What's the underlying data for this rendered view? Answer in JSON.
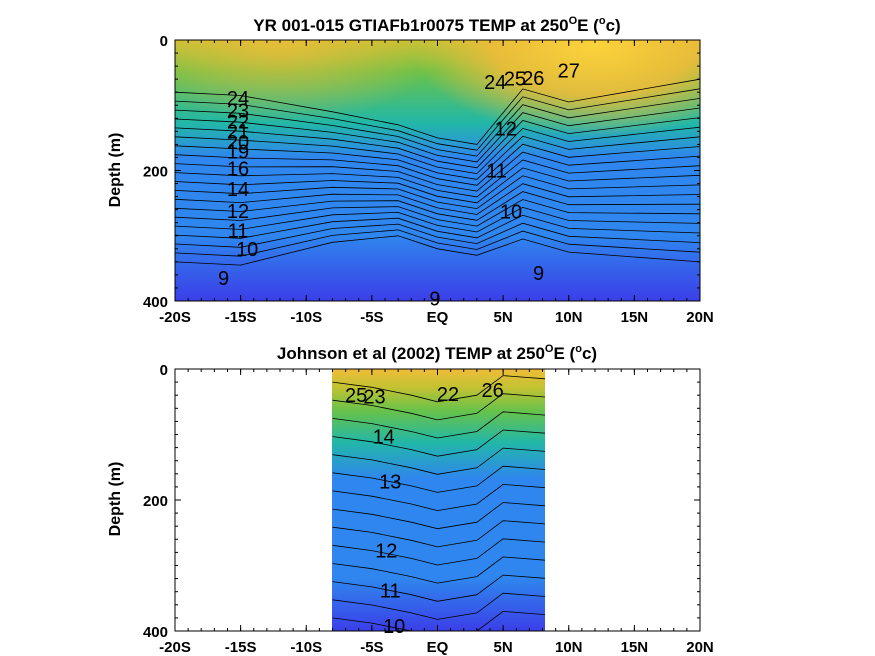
{
  "colors": {
    "deep": "#3b3ee8",
    "blue": "#2f86ee",
    "teal": "#22b7a8",
    "green": "#67c24a",
    "yellow_green": "#c3c232",
    "orange": "#f0bc39",
    "warm": "#fbd33a"
  },
  "chart_data": [
    {
      "type": "heatmap",
      "title": "YR 001-015 GTIAFb1r0075 TEMP at 250°E (°c)",
      "title_parts": {
        "pre": "YR 001-015 GTIAFb1r0075 TEMP at 250",
        "degree_sup": "O",
        "mid": "E (",
        "unit_sup": "o",
        "post": "c)"
      },
      "xlabel": "",
      "ylabel": "Depth (m)",
      "xlim": [
        -20,
        20
      ],
      "ylim": [
        400,
        0
      ],
      "x_ticks": [
        -20,
        -15,
        -10,
        -5,
        0,
        5,
        10,
        15,
        20
      ],
      "x_tick_labels": [
        "-20S",
        "-15S",
        "-10S",
        "-5S",
        "EQ",
        "5N",
        "10N",
        "15N",
        "20N"
      ],
      "y_ticks": [
        0,
        200,
        400
      ],
      "y_tick_labels": [
        "0",
        "200",
        "400"
      ],
      "data_extent_lat": [
        -20,
        20
      ],
      "contour_labels": [
        {
          "text": "24",
          "lat": -15.2,
          "depth": 89
        },
        {
          "text": "23",
          "lat": -15.2,
          "depth": 108
        },
        {
          "text": "22",
          "lat": -15.2,
          "depth": 125
        },
        {
          "text": "21",
          "lat": -15.2,
          "depth": 140
        },
        {
          "text": "20",
          "lat": -15.2,
          "depth": 156
        },
        {
          "text": "19",
          "lat": -15.2,
          "depth": 171
        },
        {
          "text": "16",
          "lat": -15.2,
          "depth": 197
        },
        {
          "text": "14",
          "lat": -15.2,
          "depth": 228
        },
        {
          "text": "12",
          "lat": -15.2,
          "depth": 262
        },
        {
          "text": "11",
          "lat": -15.2,
          "depth": 292
        },
        {
          "text": "10",
          "lat": -14.5,
          "depth": 320
        },
        {
          "text": "9",
          "lat": -16.3,
          "depth": 365
        },
        {
          "text": "9",
          "lat": 7.7,
          "depth": 357
        },
        {
          "text": "9",
          "lat": -0.2,
          "depth": 396
        },
        {
          "text": "10",
          "lat": 5.6,
          "depth": 263
        },
        {
          "text": "11",
          "lat": 4.5,
          "depth": 200
        },
        {
          "text": "12",
          "lat": 5.2,
          "depth": 136
        },
        {
          "text": "26",
          "lat": 7.3,
          "depth": 58
        },
        {
          "text": "27",
          "lat": 10.0,
          "depth": 47
        },
        {
          "text": "25",
          "lat": 5.9,
          "depth": 59
        },
        {
          "text": "24",
          "lat": 4.4,
          "depth": 64
        }
      ]
    },
    {
      "type": "heatmap",
      "title": "Johnson et al (2002) TEMP at 250°E (°c)",
      "title_parts": {
        "pre": "Johnson et al (2002) TEMP at 250",
        "degree_sup": "O",
        "mid": "E (",
        "unit_sup": "o",
        "post": "c)"
      },
      "xlabel": "",
      "ylabel": "Depth (m)",
      "xlim": [
        -20,
        20
      ],
      "ylim": [
        400,
        0
      ],
      "x_ticks": [
        -20,
        -15,
        -10,
        -5,
        0,
        5,
        10,
        15,
        20
      ],
      "x_tick_labels": [
        "-20S",
        "-15S",
        "-10S",
        "-5S",
        "EQ",
        "5N",
        "10N",
        "15N",
        "20N"
      ],
      "y_ticks": [
        0,
        200,
        400
      ],
      "y_tick_labels": [
        "0",
        "200",
        "400"
      ],
      "data_extent_lat": [
        -8,
        8.2
      ],
      "contour_labels": [
        {
          "text": "25",
          "lat": -6.2,
          "depth": 40
        },
        {
          "text": "23",
          "lat": -4.8,
          "depth": 42
        },
        {
          "text": "22",
          "lat": 0.8,
          "depth": 38
        },
        {
          "text": "26",
          "lat": 4.2,
          "depth": 32
        },
        {
          "text": "14",
          "lat": -4.1,
          "depth": 103
        },
        {
          "text": "13",
          "lat": -3.6,
          "depth": 172
        },
        {
          "text": "12",
          "lat": -3.9,
          "depth": 277
        },
        {
          "text": "11",
          "lat": -3.6,
          "depth": 338
        },
        {
          "text": "10",
          "lat": -3.3,
          "depth": 392
        }
      ]
    }
  ]
}
